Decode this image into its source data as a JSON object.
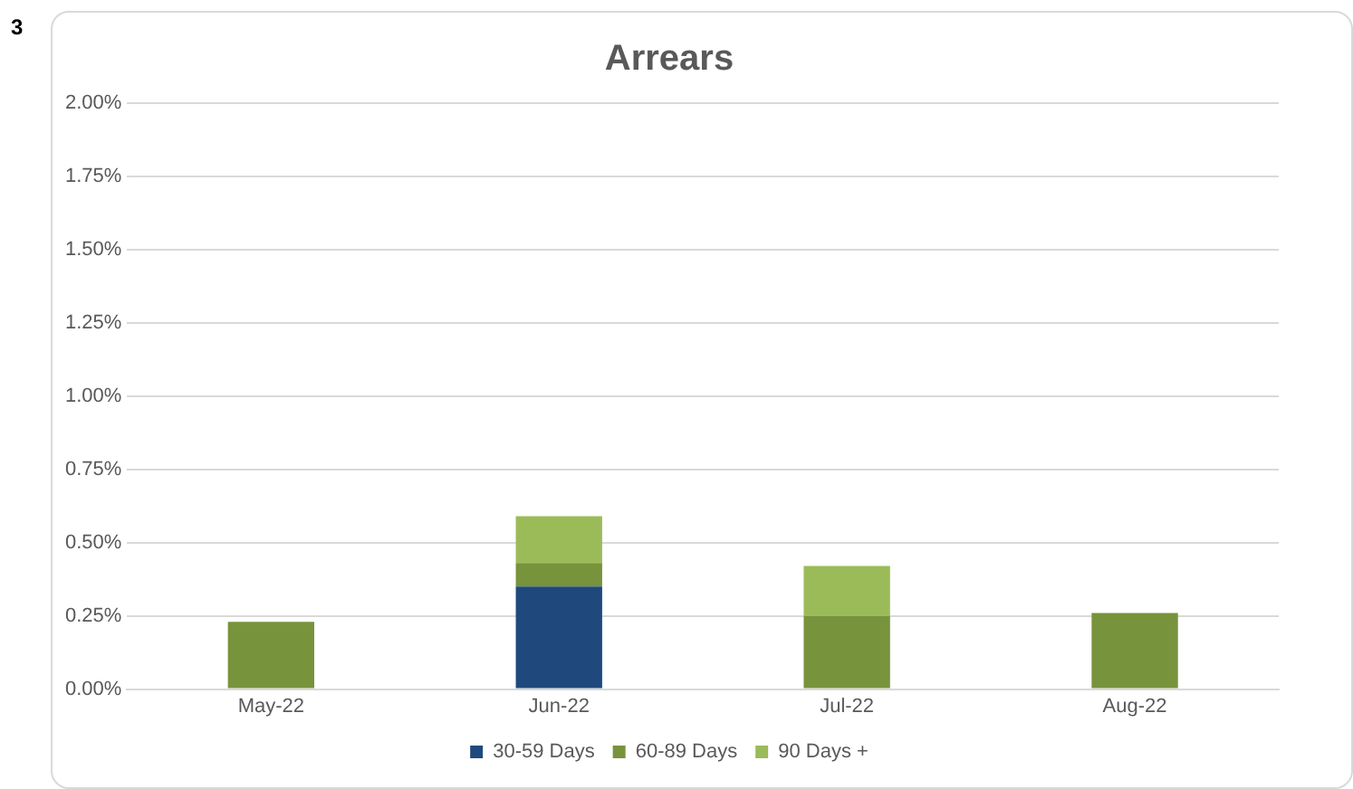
{
  "chart_data": {
    "type": "bar",
    "title": "Arrears",
    "annotations": [
      "3"
    ],
    "categories": [
      "May-22",
      "Jun-22",
      "Jul-22",
      "Aug-22"
    ],
    "stacked": true,
    "series": [
      {
        "name": "30-59 Days",
        "color": "#1f497d",
        "values": [
          null,
          0.35,
          null,
          null
        ]
      },
      {
        "name": "60-89 Days",
        "color": "#77933c",
        "values": [
          0.23,
          0.08,
          0.25,
          0.26
        ]
      },
      {
        "name": "90 Days +",
        "color": "#9bbb59",
        "values": [
          null,
          0.16,
          0.17,
          null
        ]
      }
    ],
    "ylim": [
      0,
      2
    ],
    "yticks": [
      {
        "value": 0,
        "label": "0.00%"
      },
      {
        "value": 0.25,
        "label": "0.25%"
      },
      {
        "value": 0.5,
        "label": "0.50%"
      },
      {
        "value": 0.75,
        "label": "0.75%"
      },
      {
        "value": 1,
        "label": "1.00%"
      },
      {
        "value": 1.25,
        "label": "1.25%"
      },
      {
        "value": 1.5,
        "label": "1.50%"
      },
      {
        "value": 1.75,
        "label": "1.75%"
      },
      {
        "value": 2,
        "label": "2.00%"
      }
    ],
    "grid": "y",
    "legend": "bottom"
  }
}
